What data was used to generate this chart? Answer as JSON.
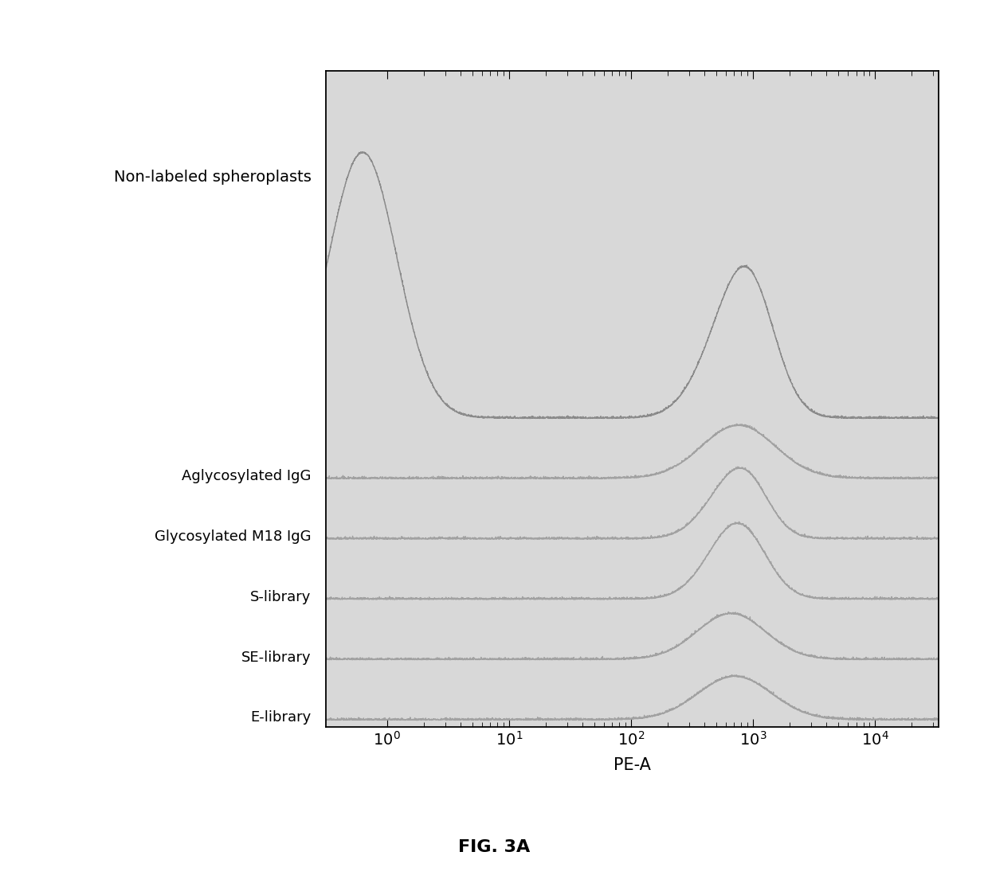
{
  "xlabel": "PE-A",
  "caption": "FIG. 3A",
  "labels_top_to_bottom": [
    "Non-labeled spheroplasts",
    "Aglycosylated IgG",
    "Glycosylated M18 IgG",
    "S-library",
    "SE-library",
    "E-library"
  ],
  "background_color": "#ffffff",
  "line_color": "#888888",
  "plot_bg": "#d8d8d8",
  "fig_width": 12.4,
  "fig_height": 11.14,
  "dpi": 100
}
